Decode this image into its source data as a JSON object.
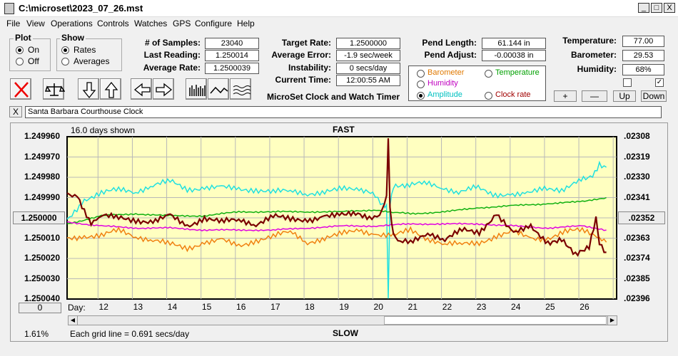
{
  "window": {
    "title": "C:\\microset\\2023_07_26.mst",
    "minimize": "_",
    "maximize": "□",
    "close": "X"
  },
  "menu": [
    "File",
    "View",
    "Operations",
    "Controls",
    "Watches",
    "GPS",
    "Configure",
    "Help"
  ],
  "plot_group": {
    "title": "Plot",
    "on": "On",
    "off": "Off",
    "selected": "On"
  },
  "show_group": {
    "title": "Show",
    "rates": "Rates",
    "averages": "Averages",
    "selected": "Rates"
  },
  "stats": {
    "samples_label": "# of Samples:",
    "samples": "23040",
    "last_label": "Last Reading:",
    "last": "1.250014",
    "avg_label": "Average Rate:",
    "avg": "1.2500039",
    "target_label": "Target Rate:",
    "target": "1.2500000",
    "err_label": "Average Error:",
    "err": "-1.9 sec/week",
    "inst_label": "Instability:",
    "inst": "0 secs/day",
    "time_label": "Current Time:",
    "time": "12:00:55 AM",
    "pend_len_label": "Pend Length:",
    "pend_len": "61.144 in",
    "pend_adj_label": "Pend Adjust:",
    "pend_adj": "-0.00038 in",
    "temp_label": "Temperature:",
    "temp": "77.00",
    "baro_label": "Barometer:",
    "baro": "29.53",
    "hum_label": "Humidity:",
    "hum": "68%"
  },
  "app_title": "MicroSet Clock and Watch Timer",
  "legend": {
    "barometer": "Barometer",
    "temperature": "Temperature",
    "humidity": "Humidity",
    "amplitude": "Amplitude",
    "clock_rate": "Clock rate",
    "selected": "Amplitude",
    "colors": {
      "barometer": "#e07800",
      "temperature": "#00a000",
      "humidity": "#c000c0",
      "amplitude": "#00c0c0",
      "clock_rate": "#a00000"
    }
  },
  "env_buttons": {
    "plus": "+",
    "minus": "—",
    "up": "Up",
    "down": "Down"
  },
  "env_checks": [
    false,
    true
  ],
  "watch": {
    "close": "X",
    "name": "Santa Barbara Courthouse Clock"
  },
  "chart_header": {
    "days_shown": "16.0 days shown",
    "top_label": "FAST",
    "bottom_label": "SLOW",
    "grid_note": "Each grid line = 0.691 secs/day",
    "percent": "1.61%",
    "left_btn": "1.250000",
    "right_btn": ".02352",
    "zero_btn": "0",
    "day_label": "Day:"
  },
  "chart_data": {
    "type": "line",
    "background": "#ffffc0",
    "left_axis_ticks": [
      "1.249960",
      "1.249970",
      "1.249980",
      "1.249990",
      "1.250000",
      "1.250010",
      "1.250020",
      "1.250030",
      "1.250040"
    ],
    "right_axis_ticks": [
      ".02308",
      ".02319",
      ".02330",
      ".02341",
      ".02352",
      ".02363",
      ".02374",
      ".02385",
      ".02396"
    ],
    "x_ticks": [
      "12",
      "13",
      "14",
      "15",
      "16",
      "17",
      "18",
      "19",
      "20",
      "21",
      "22",
      "23",
      "24",
      "25",
      "26"
    ],
    "xlim": [
      11.1,
      27.1
    ],
    "ylim": [
      1.25004,
      1.24996
    ],
    "series": [
      {
        "name": "Amplitude",
        "color": "#20e0e0",
        "x": [
          11.1,
          11.6,
          12.1,
          12.6,
          13.1,
          13.6,
          14.1,
          14.6,
          15.1,
          15.6,
          16.1,
          16.6,
          17.1,
          17.6,
          18.1,
          18.6,
          19.1,
          19.6,
          20.0,
          20.3,
          20.4,
          20.45,
          20.5,
          20.6,
          21.0,
          21.5,
          22.0,
          22.5,
          23.0,
          23.5,
          24.0,
          24.5,
          25.0,
          25.5,
          26.0,
          26.4,
          26.6,
          26.8
        ],
        "y": [
          1.250001,
          1.249991,
          1.249988,
          1.249986,
          1.249987,
          1.249984,
          1.249982,
          1.249986,
          1.249985,
          1.249985,
          1.249986,
          1.249986,
          1.249987,
          1.249987,
          1.249988,
          1.249987,
          1.249986,
          1.249986,
          1.249988,
          1.249993,
          1.249995,
          1.250039,
          1.249994,
          1.249985,
          1.249984,
          1.249983,
          1.249985,
          1.249987,
          1.249985,
          1.249989,
          1.249988,
          1.249988,
          1.249986,
          1.249986,
          1.249981,
          1.249979,
          1.249973,
          1.249975
        ]
      },
      {
        "name": "Temperature",
        "color": "#10b010",
        "x": [
          11.1,
          12.1,
          13.1,
          14.1,
          15.1,
          16.1,
          17.1,
          18.1,
          19.1,
          20.1,
          20.5,
          21.1,
          22.1,
          23.1,
          24.1,
          25.1,
          26.1,
          26.8
        ],
        "y": [
          1.250003,
          1.249999,
          1.249998,
          1.249999,
          1.249999,
          1.249997,
          1.249997,
          1.249997,
          1.249997,
          1.249996,
          1.249997,
          1.249998,
          1.249997,
          1.249995,
          1.249994,
          1.249993,
          1.249992,
          1.24999
        ]
      },
      {
        "name": "Humidity",
        "color": "#e000e0",
        "x": [
          11.1,
          12.1,
          13.1,
          14.1,
          15.1,
          16.1,
          17.1,
          18.1,
          19.1,
          20.1,
          21.1,
          22.1,
          23.1,
          24.1,
          25.1,
          26.1,
          26.8
        ],
        "y": [
          1.250002,
          1.250004,
          1.250005,
          1.250005,
          1.250006,
          1.250006,
          1.250006,
          1.250005,
          1.250004,
          1.250004,
          1.250003,
          1.250003,
          1.250003,
          1.250004,
          1.250005,
          1.250004,
          1.250006
        ]
      },
      {
        "name": "Barometer",
        "color": "#f08010",
        "x": [
          11.1,
          11.6,
          12.1,
          12.6,
          13.1,
          13.6,
          14.1,
          14.6,
          15.1,
          15.6,
          16.1,
          16.6,
          17.1,
          17.6,
          18.1,
          18.6,
          19.1,
          19.6,
          20.1,
          20.6,
          21.1,
          21.6,
          22.1,
          22.6,
          23.1,
          23.6,
          24.1,
          24.6,
          25.1,
          25.6,
          26.1,
          26.6,
          26.8
        ],
        "y": [
          1.25001,
          1.250009,
          1.250009,
          1.250006,
          1.250009,
          1.250011,
          1.250013,
          1.250015,
          1.250012,
          1.250011,
          1.250014,
          1.250011,
          1.250009,
          1.250007,
          1.250012,
          1.25001,
          1.250008,
          1.250006,
          1.250008,
          1.250009,
          1.250006,
          1.25001,
          1.250013,
          1.250013,
          1.250012,
          1.250009,
          1.250007,
          1.25001,
          1.25001,
          1.250007,
          1.250006,
          1.250009,
          1.250012
        ]
      },
      {
        "name": "Clock rate",
        "color": "#7a0000",
        "x": [
          11.1,
          11.4,
          11.6,
          11.8,
          12.1,
          12.6,
          13.1,
          13.6,
          14.1,
          14.6,
          15.1,
          15.6,
          16.1,
          16.6,
          17.1,
          17.6,
          18.1,
          18.6,
          19.1,
          19.5,
          19.9,
          20.2,
          20.4,
          20.45,
          20.5,
          20.6,
          20.8,
          21.1,
          21.6,
          22.1,
          22.6,
          23.1,
          23.6,
          24.1,
          24.6,
          25.1,
          25.5,
          25.9,
          26.3,
          26.5,
          26.6,
          26.8
        ],
        "y": [
          1.249988,
          1.249989,
          1.249996,
          1.250002,
          1.249999,
          1.25,
          1.250001,
          1.250002,
          1.249999,
          1.250004,
          1.25,
          1.250002,
          1.250001,
          1.250003,
          1.249999,
          1.250001,
          1.250001,
          1.249999,
          1.249999,
          1.249998,
          1.25,
          1.25,
          1.24999,
          1.24996,
          1.249995,
          1.250009,
          1.250012,
          1.250012,
          1.250007,
          1.250011,
          1.250006,
          1.250007,
          1.249998,
          1.250008,
          1.250004,
          1.250012,
          1.25001,
          1.250018,
          1.250015,
          1.250001,
          1.250012,
          1.250017
        ]
      }
    ]
  }
}
